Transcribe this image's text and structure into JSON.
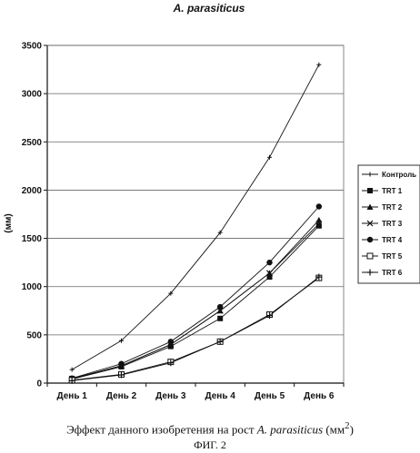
{
  "chart_data": {
    "type": "line",
    "title": "A. parasiticus",
    "ylabel": "(мм)",
    "xlabel": "",
    "categories": [
      "День 1",
      "День 2",
      "День 3",
      "День 4",
      "День 5",
      "День 6"
    ],
    "ylim": [
      0,
      3500
    ],
    "yticks": [
      0,
      500,
      1000,
      1500,
      2000,
      2500,
      3000,
      3500
    ],
    "grid": true,
    "legend_position": "right",
    "series": [
      {
        "name": "Контроль",
        "marker": "small-plus",
        "values": [
          140,
          440,
          930,
          1560,
          2340,
          3300
        ]
      },
      {
        "name": "TRT 1",
        "marker": "filled-square",
        "values": [
          40,
          170,
          380,
          670,
          1100,
          1630
        ]
      },
      {
        "name": "TRT 2",
        "marker": "filled-triangle",
        "values": [
          45,
          180,
          400,
          750,
          1140,
          1690
        ]
      },
      {
        "name": "TRT 3",
        "marker": "x",
        "values": [
          45,
          180,
          400,
          750,
          1140,
          1650
        ]
      },
      {
        "name": "TRT 4",
        "marker": "filled-circle",
        "values": [
          50,
          200,
          430,
          790,
          1250,
          1830
        ]
      },
      {
        "name": "TRT 5",
        "marker": "open-square",
        "values": [
          30,
          90,
          220,
          430,
          710,
          1090
        ]
      },
      {
        "name": "TRT 6",
        "marker": "plus",
        "values": [
          25,
          85,
          210,
          430,
          700,
          1100
        ]
      }
    ]
  },
  "caption": {
    "prefix": "Эффект данного изобретения на рост ",
    "species": "A. parasiticus",
    "unit_base": " (мм",
    "unit_sup": "2",
    "unit_close": ")"
  },
  "figure_label": "ФИГ. 2"
}
